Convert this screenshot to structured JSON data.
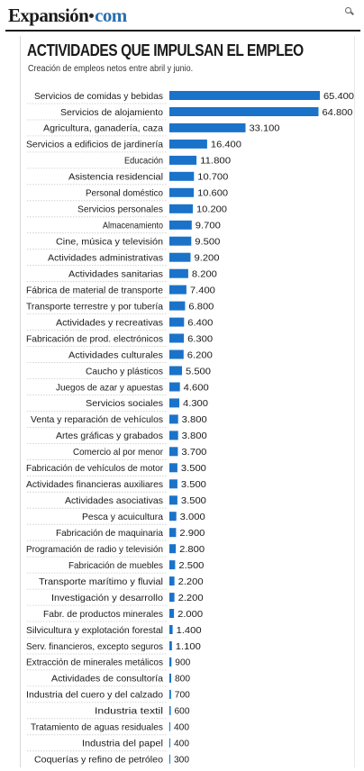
{
  "header": {
    "logo_main": "Expansión",
    "logo_suffix": "com"
  },
  "colors": {
    "bar": "#1a73c9",
    "divider": "#c9c9c9"
  },
  "chart_data": {
    "type": "bar",
    "orientation": "horizontal",
    "title": "ACTIVIDADES QUE IMPULSAN EL EMPLEO",
    "subtitle": "Creación de empleos netos entre abril y junio.",
    "categories": [
      "Servicios de comidas y bebidas",
      "Servicios de alojamiento",
      "Agricultura, ganadería, caza",
      "Servicios a edificios de jardinería",
      "Educación",
      "Asistencia residencial",
      "Personal doméstico",
      "Servicios personales",
      "Almacenamiento",
      "Cine, música y televisión",
      "Actividades administrativas",
      "Actividades sanitarias",
      "Fábrica de material de transporte",
      "Transporte terrestre y por tubería",
      "Actividades y recreativas",
      "Fabricación de prod. electrónicos",
      "Actividades culturales",
      "Caucho y plásticos",
      "Juegos de azar y apuestas",
      "Servicios sociales",
      "Venta y reparación de vehículos",
      "Artes gráficas y grabados",
      "Comercio al por menor",
      "Fabricación de vehículos de motor",
      "Actividades financieras auxiliares",
      "Actividades asociativas",
      "Pesca y acuicultura",
      "Fabricación de maquinaria",
      "Programación de radio y televisión",
      "Fabricación de muebles",
      "Transporte marítimo y fluvial",
      "Investigación y desarrollo",
      "Fabr. de productos minerales",
      "Silvicultura y explotación forestal",
      "Serv. financieros, excepto seguros",
      "Extracción de minerales metálicos",
      "Actividades de consultoría",
      "Industria del cuero y del calzado",
      "Industria textil",
      "Tratamiento de aguas residuales",
      "Industria del papel",
      "Coquerías y refino de petróleo"
    ],
    "values": [
      65400,
      64800,
      33100,
      16400,
      11800,
      10700,
      10600,
      10200,
      9700,
      9500,
      9200,
      8200,
      7400,
      6800,
      6400,
      6300,
      6200,
      5500,
      4600,
      4300,
      3800,
      3800,
      3700,
      3500,
      3500,
      3500,
      3000,
      2900,
      2800,
      2500,
      2200,
      2200,
      2000,
      1400,
      1100,
      900,
      800,
      700,
      600,
      400,
      400,
      300
    ],
    "value_labels": [
      "65.400",
      "64.800",
      "33.100",
      "16.400",
      "11.800",
      "10.700",
      "10.600",
      "10.200",
      "9.700",
      "9.500",
      "9.200",
      "8.200",
      "7.400",
      "6.800",
      "6.400",
      "6.300",
      "6.200",
      "5.500",
      "4.600",
      "4.300",
      "3.800",
      "3.800",
      "3.700",
      "3.500",
      "3.500",
      "3.500",
      "3.000",
      "2.900",
      "2.800",
      "2.500",
      "2.200",
      "2.200",
      "2.000",
      "1.400",
      "1.100",
      "900",
      "800",
      "700",
      "600",
      "400",
      "400",
      "300"
    ],
    "xlim": [
      0,
      65400
    ],
    "xlabel": "",
    "ylabel": "",
    "grid": false,
    "legend": "none"
  }
}
